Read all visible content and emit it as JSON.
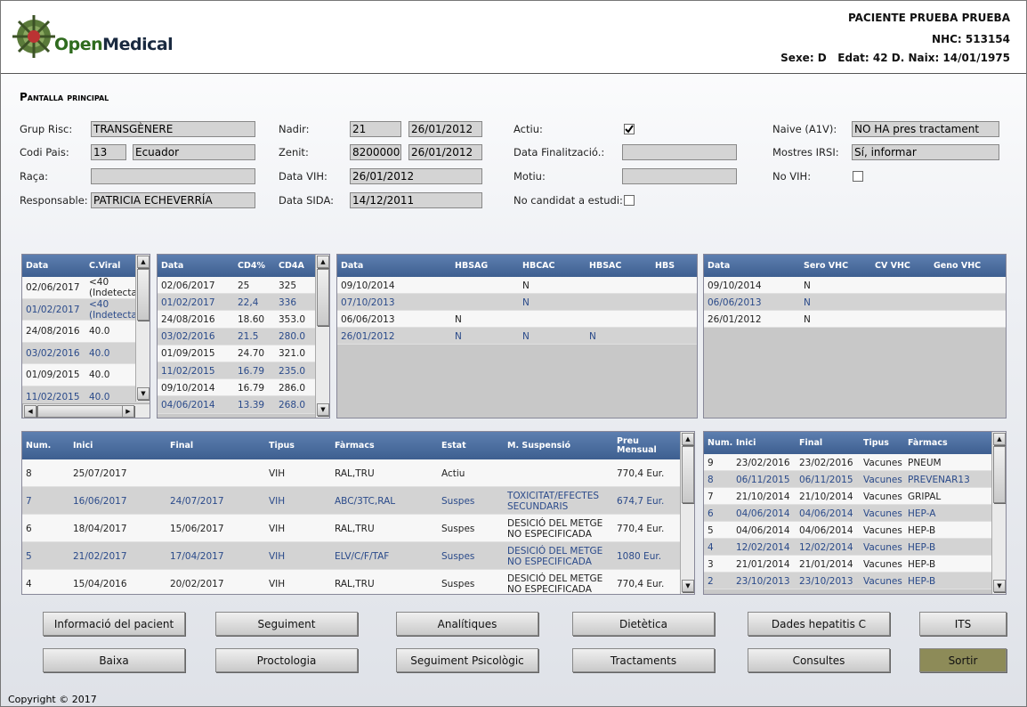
{
  "header": {
    "logo_open": "Open",
    "logo_medical": "Medical",
    "patient": "PACIENTE PRUEBA PRUEBA",
    "nhc": "NHC: 513154",
    "info": "Sexe: D   Edat: 42 D. Naix: 14/01/1975"
  },
  "screen_title": "Pantalla principal",
  "form": {
    "columns": [
      [
        {
          "label": "Grup Risc:",
          "values": [
            "TRANSGÈNERE"
          ]
        },
        {
          "label": "Codi Pais:",
          "values": [
            "13",
            "Ecuador"
          ]
        },
        {
          "label": "Raça:",
          "values": []
        },
        {
          "label": "Responsable:",
          "values": [
            "PATRICIA ECHEVERRÍA"
          ]
        }
      ],
      [
        {
          "label": "Nadir:",
          "values": [
            "21",
            "26/01/2012"
          ]
        },
        {
          "label": "Zenit:",
          "values": [
            "8200000",
            "26/01/2012"
          ]
        },
        {
          "label": "Data VIH:",
          "values": [
            "26/01/2012"
          ]
        },
        {
          "label": "Data SIDA:",
          "values": [
            "14/12/2011"
          ]
        }
      ],
      [
        {
          "label": "Actiu:",
          "checked": true
        },
        {
          "label": "Data Finalització.:",
          "values": []
        },
        {
          "label": "Motiu:",
          "values": []
        },
        {
          "label": "No candidat a estudi:",
          "checked": false
        }
      ],
      [
        {
          "label": "Naive (A1V):",
          "values": [
            "NO HA pres tractament"
          ]
        },
        {
          "label": "Mostres IRSI:",
          "values": [
            "Sí, informar"
          ]
        },
        {
          "label": "No VIH:",
          "checked": false
        }
      ]
    ]
  },
  "tables": [
    {
      "columns": [
        "Data",
        "C.Viral"
      ],
      "rows": [
        [
          "02/06/2017",
          "<40 (Indetecta"
        ],
        [
          "01/02/2017",
          "<40 (Indetecta"
        ],
        [
          "24/08/2016",
          "40.0"
        ],
        [
          "03/02/2016",
          "40.0"
        ],
        [
          "01/09/2015",
          "40.0"
        ],
        [
          "11/02/2015",
          "40.0"
        ]
      ]
    },
    {
      "columns": [
        "Data",
        "CD4%",
        "CD4A"
      ],
      "rows": [
        [
          "02/06/2017",
          "25",
          "325"
        ],
        [
          "01/02/2017",
          "22,4",
          "336"
        ],
        [
          "24/08/2016",
          "18.60",
          "353.0"
        ],
        [
          "03/02/2016",
          "21.5",
          "280.0"
        ],
        [
          "01/09/2015",
          "24.70",
          "321.0"
        ],
        [
          "11/02/2015",
          "16.79",
          "235.0"
        ],
        [
          "09/10/2014",
          "16.79",
          "286.0"
        ],
        [
          "04/06/2014",
          "13.39",
          "268.0"
        ]
      ]
    },
    {
      "columns": [
        "Data",
        "HBSAG",
        "HBCAC",
        "HBSAC",
        "HBS"
      ],
      "rows": [
        [
          "09/10/2014",
          null,
          "N",
          null,
          null
        ],
        [
          "07/10/2013",
          null,
          "N",
          null,
          null
        ],
        [
          "06/06/2013",
          "N",
          null,
          null,
          null
        ],
        [
          "26/01/2012",
          "N",
          "N",
          "N",
          null
        ]
      ]
    },
    {
      "columns": [
        "Data",
        "Sero VHC",
        "CV VHC",
        "Geno VHC"
      ],
      "rows": [
        [
          "09/10/2014",
          "N",
          null,
          null
        ],
        [
          "06/06/2013",
          "N",
          null,
          null
        ],
        [
          "26/01/2012",
          "N",
          null,
          null
        ]
      ]
    },
    {
      "columns": [
        "Num.",
        "Inici",
        "Final",
        "Tipus",
        "Fàrmacs",
        "Estat",
        "M. Suspensió",
        "Preu Mensual"
      ],
      "rows": [
        [
          "8",
          "25/07/2017",
          null,
          "VIH",
          "RAL,TRU",
          "Actiu",
          null,
          "770,4 Eur."
        ],
        [
          "7",
          "16/06/2017",
          "24/07/2017",
          "VIH",
          "ABC/3TC,RAL",
          "Suspes",
          "TOXICITAT/EFECTES SECUNDARIS",
          "674,7 Eur."
        ],
        [
          "6",
          "18/04/2017",
          "15/06/2017",
          "VIH",
          "RAL,TRU",
          "Suspes",
          "DESICIÓ DEL METGE NO ESPECIFICADA",
          "770,4 Eur."
        ],
        [
          "5",
          "21/02/2017",
          "17/04/2017",
          "VIH",
          "ELV/C/F/TAF",
          "Suspes",
          "DESICIÓ DEL METGE NO ESPECIFICADA",
          "1080 Eur."
        ],
        [
          "4",
          "15/04/2016",
          "20/02/2017",
          "VIH",
          "RAL,TRU",
          "Suspes",
          "DESICIÓ DEL METGE NO ESPECIFICADA",
          "770,4 Eur."
        ]
      ]
    },
    {
      "columns": [
        "Num.",
        "Inici",
        "Final",
        "Tipus",
        "Fàrmacs"
      ],
      "rows": [
        [
          "9",
          "23/02/2016",
          "23/02/2016",
          "Vacunes",
          "PNEUM"
        ],
        [
          "8",
          "06/11/2015",
          "06/11/2015",
          "Vacunes",
          "PREVENAR13"
        ],
        [
          "7",
          "21/10/2014",
          "21/10/2014",
          "Vacunes",
          "GRIPAL"
        ],
        [
          "6",
          "04/06/2014",
          "04/06/2014",
          "Vacunes",
          "HEP-A"
        ],
        [
          "5",
          "04/06/2014",
          "04/06/2014",
          "Vacunes",
          "HEP-B"
        ],
        [
          "4",
          "12/02/2014",
          "12/02/2014",
          "Vacunes",
          "HEP-B"
        ],
        [
          "3",
          "21/01/2014",
          "21/01/2014",
          "Vacunes",
          "HEP-B"
        ],
        [
          "2",
          "23/10/2013",
          "23/10/2013",
          "Vacunes",
          "HEP-B"
        ]
      ]
    }
  ],
  "buttons": [
    [
      "Informació del pacient",
      "Seguiment",
      "Analítiques",
      "Dietètica",
      "Dades hepatitis C",
      "ITS"
    ],
    [
      "Baixa",
      "Proctologia",
      "Seguiment Psicològic",
      "Tractaments",
      "Consultes",
      "Sortir"
    ]
  ],
  "footer": "Copyright © 2017"
}
